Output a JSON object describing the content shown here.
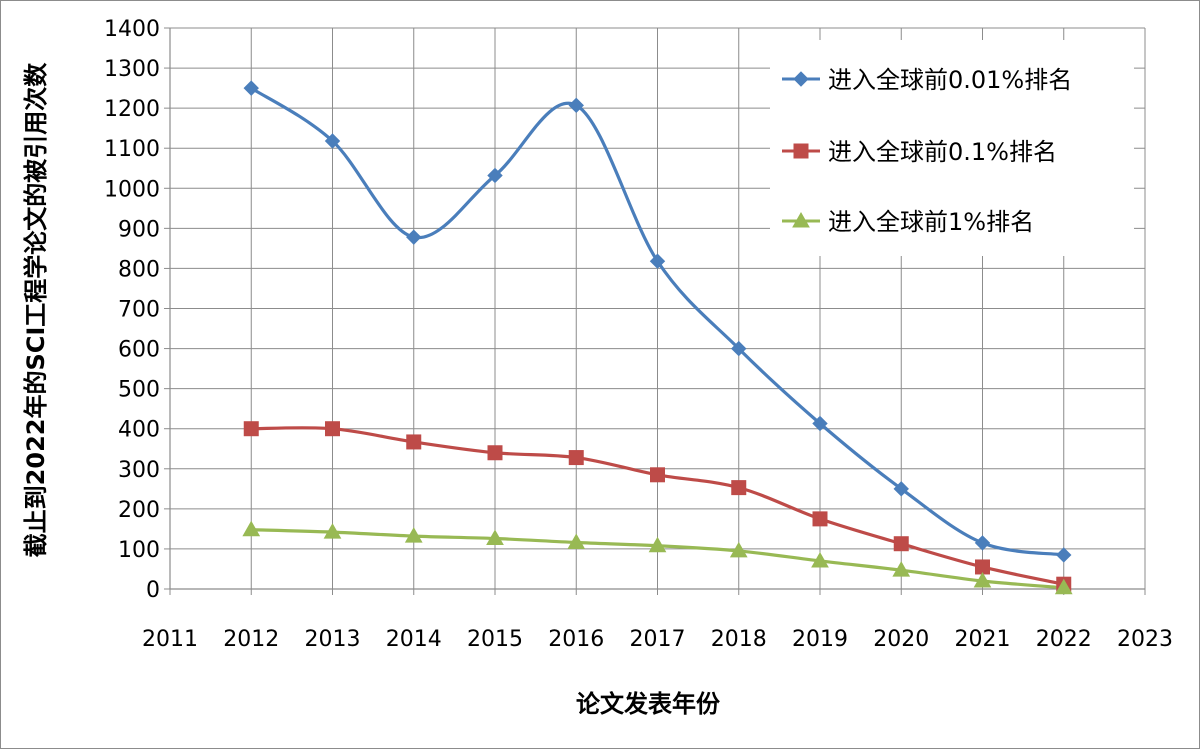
{
  "chart_data": {
    "type": "line",
    "title": "",
    "xlabel": "论文发表年份",
    "ylabel": "截止到2022年的SCI工程学论文的被引用次数",
    "xlim": [
      2011,
      2023
    ],
    "ylim": [
      0,
      1400
    ],
    "x_ticks": [
      "2011",
      "2012",
      "2013",
      "2014",
      "2015",
      "2016",
      "2017",
      "2018",
      "2019",
      "2020",
      "2021",
      "2022",
      "2023"
    ],
    "y_ticks": [
      "0",
      "100",
      "200",
      "300",
      "400",
      "500",
      "600",
      "700",
      "800",
      "900",
      "1000",
      "1100",
      "1200",
      "1300",
      "1400"
    ],
    "grid": true,
    "legend_position": "top-right",
    "x": [
      2012,
      2013,
      2014,
      2015,
      2016,
      2017,
      2018,
      2019,
      2020,
      2021,
      2022
    ],
    "series": [
      {
        "name": "进入全球前0.01%排名",
        "color": "#4a7ebb",
        "marker": "diamond",
        "smooth": true,
        "values": [
          1250,
          1118,
          878,
          1032,
          1207,
          818,
          600,
          413,
          250,
          115,
          85
        ]
      },
      {
        "name": "进入全球前0.1%排名",
        "color": "#be4b48",
        "marker": "square",
        "smooth": true,
        "values": [
          400,
          400,
          367,
          340,
          328,
          285,
          253,
          175,
          113,
          55,
          12
        ]
      },
      {
        "name": "进入全球前1%排名",
        "color": "#98b954",
        "marker": "triangle",
        "smooth": true,
        "values": [
          148,
          142,
          132,
          126,
          116,
          108,
          95,
          70,
          47,
          20,
          3
        ]
      }
    ]
  }
}
